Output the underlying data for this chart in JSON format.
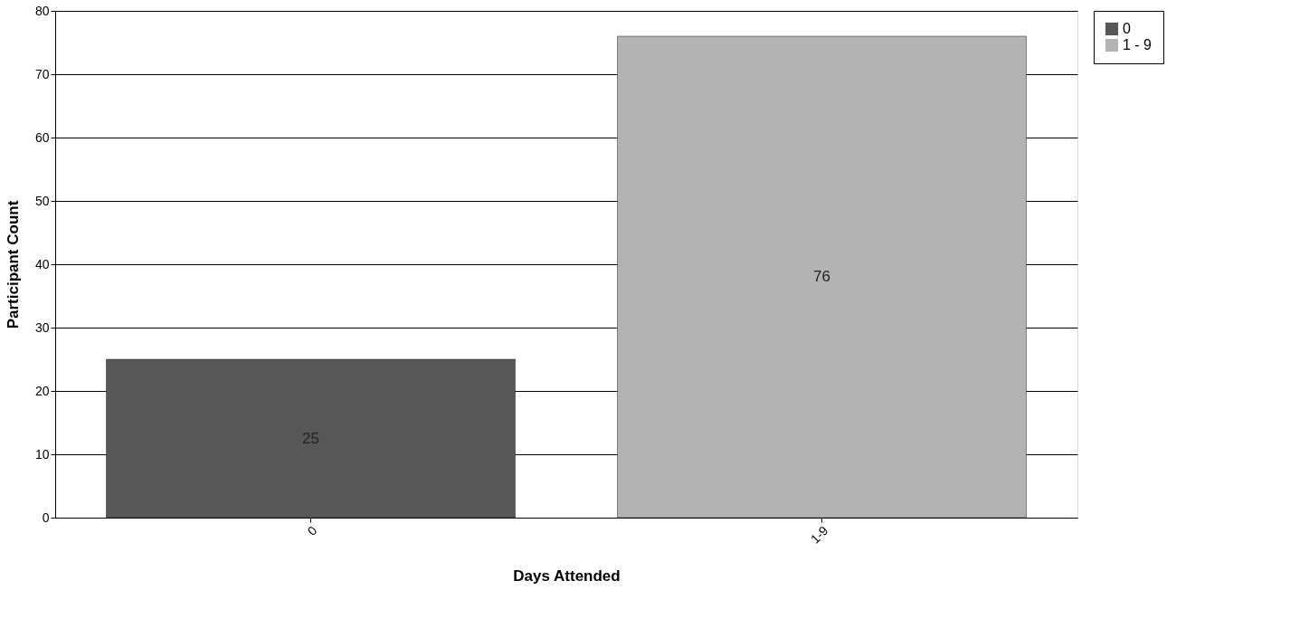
{
  "chart_data": {
    "type": "bar",
    "xlabel": "Days Attended",
    "ylabel": "Participant Count",
    "categories": [
      "0",
      "1-9"
    ],
    "series": [
      {
        "name": "0",
        "color": "#575757",
        "values": [
          25,
          null
        ]
      },
      {
        "name": "1 - 9",
        "color": "#b3b3b3",
        "values": [
          null,
          76
        ]
      }
    ],
    "ylim": [
      0,
      80
    ],
    "yticks": [
      0,
      10,
      20,
      30,
      40,
      50,
      60,
      70,
      80
    ],
    "grid": "y",
    "legend": "right",
    "data_labels": true
  }
}
